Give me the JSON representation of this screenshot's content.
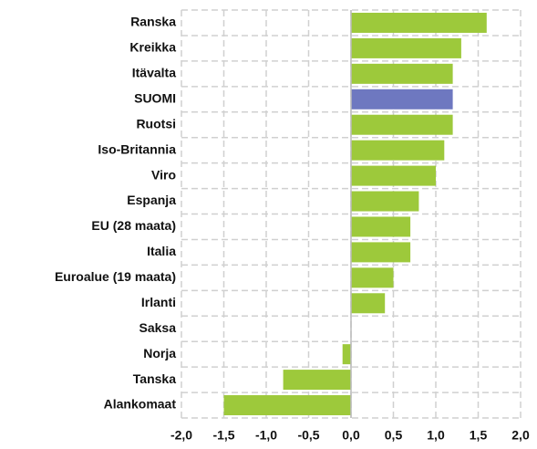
{
  "chart_data": {
    "type": "barh",
    "categories": [
      "Ranska",
      "Kreikka",
      "Itävalta",
      "SUOMI",
      "Ruotsi",
      "Iso-Britannia",
      "Viro",
      "Espanja",
      "EU (28 maata)",
      "Italia",
      "Euroalue (19 maata)",
      "Irlanti",
      "Saksa",
      "Norja",
      "Tanska",
      "Alankomaat"
    ],
    "values": [
      1.6,
      1.3,
      1.2,
      1.2,
      1.2,
      1.1,
      1.0,
      0.8,
      0.7,
      0.7,
      0.5,
      0.4,
      0.0,
      -0.1,
      -0.8,
      -1.5
    ],
    "colors": [
      "#9dc93b",
      "#9dc93b",
      "#9dc93b",
      "#6e78c0",
      "#9dc93b",
      "#9dc93b",
      "#9dc93b",
      "#9dc93b",
      "#9dc93b",
      "#9dc93b",
      "#9dc93b",
      "#9dc93b",
      "#9dc93b",
      "#9dc93b",
      "#9dc93b",
      "#9dc93b"
    ],
    "xlim": [
      -2,
      2
    ],
    "xticks": [
      {
        "value": -2,
        "label": "-2,0"
      },
      {
        "value": -1.5,
        "label": "-1,5"
      },
      {
        "value": -1,
        "label": "-1,0"
      },
      {
        "value": -0.5,
        "label": "-0,5"
      },
      {
        "value": 0,
        "label": "0,0"
      },
      {
        "value": 0.5,
        "label": "0,5"
      },
      {
        "value": 1,
        "label": "1,0"
      },
      {
        "value": 1.5,
        "label": "1,5"
      },
      {
        "value": 2,
        "label": "2,0"
      }
    ],
    "grid": true
  }
}
